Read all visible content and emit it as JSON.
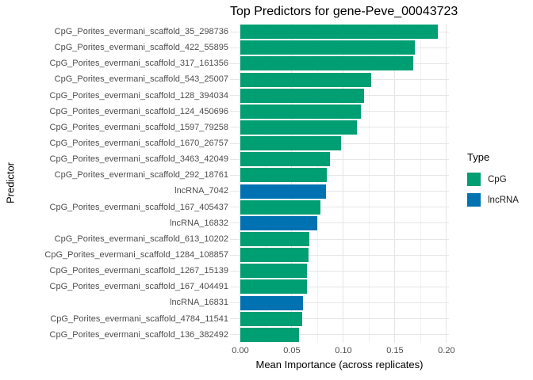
{
  "chart_data": {
    "type": "bar",
    "orientation": "horizontal",
    "title": "Top Predictors for gene-Peve_00043723",
    "xlabel": "Mean Importance (across replicates)",
    "ylabel": "Predictor",
    "xlim": [
      0,
      0.2
    ],
    "x_ticks": [
      0,
      0.05,
      0.1,
      0.15,
      0.2
    ],
    "x_tick_labels": [
      "0.00",
      "0.05",
      "0.10",
      "0.15",
      "0.20"
    ],
    "x_minor_ticks": [
      0.025,
      0.075,
      0.125,
      0.175
    ],
    "grid": "major+minor vertical, major horizontal",
    "legend_position": "right",
    "categories": [
      "CpG_Porites_evermani_scaffold_35_298736",
      "CpG_Porites_evermani_scaffold_422_55895",
      "CpG_Porites_evermani_scaffold_317_161356",
      "CpG_Porites_evermani_scaffold_543_25007",
      "CpG_Porites_evermani_scaffold_128_394034",
      "CpG_Porites_evermani_scaffold_124_450696",
      "CpG_Porites_evermani_scaffold_1597_79258",
      "CpG_Porites_evermani_scaffold_1670_26757",
      "CpG_Porites_evermani_scaffold_3463_42049",
      "CpG_Porites_evermani_scaffold_292_18761",
      "lncRNA_7042",
      "CpG_Porites_evermani_scaffold_167_405437",
      "lncRNA_16832",
      "CpG_Porites_evermani_scaffold_613_10202",
      "CpG_Porites_evermani_scaffold_1284_108857",
      "CpG_Porites_evermani_scaffold_1267_15139",
      "CpG_Porites_evermani_scaffold_167_404491",
      "lncRNA_16831",
      "CpG_Porites_evermani_scaffold_4784_11541",
      "CpG_Porites_evermani_scaffold_136_382492"
    ],
    "values": [
      0.192,
      0.169,
      0.168,
      0.127,
      0.12,
      0.117,
      0.113,
      0.098,
      0.087,
      0.084,
      0.0835,
      0.078,
      0.075,
      0.067,
      0.066,
      0.065,
      0.0645,
      0.0605,
      0.06,
      0.057
    ],
    "types": [
      "CpG",
      "CpG",
      "CpG",
      "CpG",
      "CpG",
      "CpG",
      "CpG",
      "CpG",
      "CpG",
      "CpG",
      "lncRNA",
      "CpG",
      "lncRNA",
      "CpG",
      "CpG",
      "CpG",
      "CpG",
      "lncRNA",
      "CpG",
      "CpG"
    ],
    "type_colors": {
      "CpG": "#009E73",
      "lncRNA": "#0072B2"
    }
  },
  "legend": {
    "title": "Type",
    "entries": [
      {
        "label": "CpG",
        "color": "#009E73"
      },
      {
        "label": "lncRNA",
        "color": "#0072B2"
      }
    ]
  }
}
